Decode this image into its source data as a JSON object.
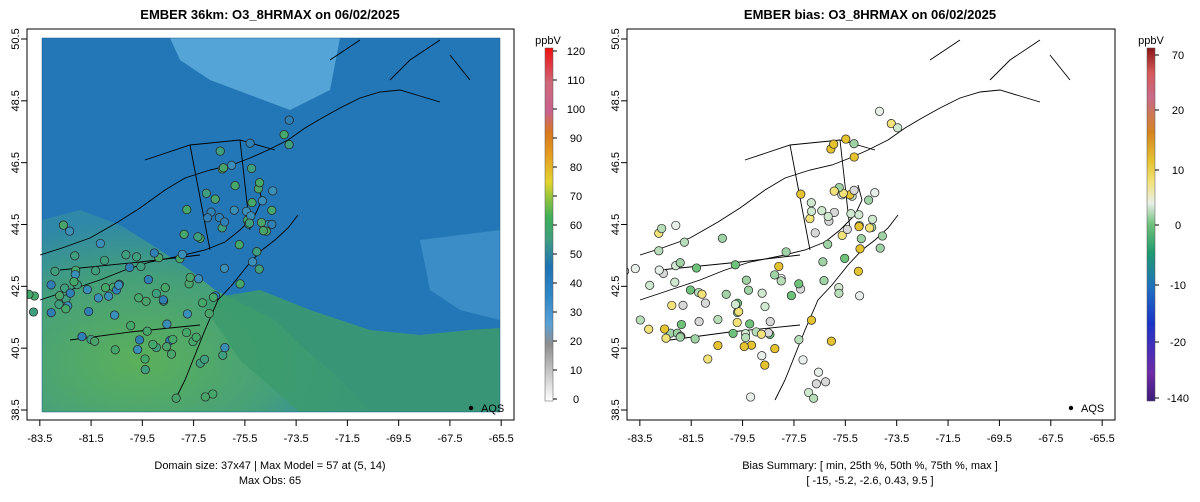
{
  "colors": {
    "land_green": "#4aa36a",
    "ocean_blue": "#2377b6",
    "light_blue": "#4fa1d8",
    "frame": "#000000"
  },
  "chart_data": [
    {
      "type": "heatmap",
      "title": "EMBER 36km: O3_8HRMAX on 06/02/2025",
      "x_ticks": [
        "-83.5",
        "-81.5",
        "-79.5",
        "-77.5",
        "-75.5",
        "-73.5",
        "-71.5",
        "-69.5",
        "-67.5",
        "-65.5"
      ],
      "y_ticks": [
        "38.5",
        "40.5",
        "42.5",
        "44.5",
        "46.5",
        "48.5",
        "50.5"
      ],
      "xlim": [
        -84.0,
        -65.0
      ],
      "ylim": [
        38.5,
        50.5
      ],
      "colorbar": {
        "unit": "ppbV",
        "ticks": [
          "0",
          "10",
          "20",
          "30",
          "40",
          "50",
          "60",
          "70",
          "80",
          "90",
          "100",
          "110",
          "120"
        ],
        "range": [
          0,
          120
        ]
      },
      "legend": "AQS",
      "footer_line1": "Domain size: 37x47 | Max Model = 57 at (5, 14)",
      "footer_line2": "Max Obs: 65"
    },
    {
      "type": "scatter",
      "title": "EMBER bias: O3_8HRMAX on 06/02/2025",
      "x_ticks": [
        "-83.5",
        "-81.5",
        "-79.5",
        "-77.5",
        "-75.5",
        "-73.5",
        "-71.5",
        "-69.5",
        "-67.5",
        "-65.5"
      ],
      "y_ticks": [
        "38.5",
        "40.5",
        "42.5",
        "44.5",
        "46.5",
        "48.5",
        "50.5"
      ],
      "xlim": [
        -84.0,
        -65.0
      ],
      "ylim": [
        38.5,
        50.5
      ],
      "colorbar": {
        "unit": "ppbV",
        "ticks": [
          "70",
          "20",
          "10",
          "0",
          "-10",
          "-20",
          "-140"
        ]
      },
      "legend": "AQS",
      "footer_line1": "Bias Summary: [ min, 25th %, 50th %, 75th %, max ]",
      "footer_line2": "[ -15,  -5.2,  -2.6,  0.43,  9.5 ]",
      "bias_summary": {
        "min": -15,
        "p25": -5.2,
        "p50": -2.6,
        "p75": 0.43,
        "max": 9.5
      }
    }
  ]
}
